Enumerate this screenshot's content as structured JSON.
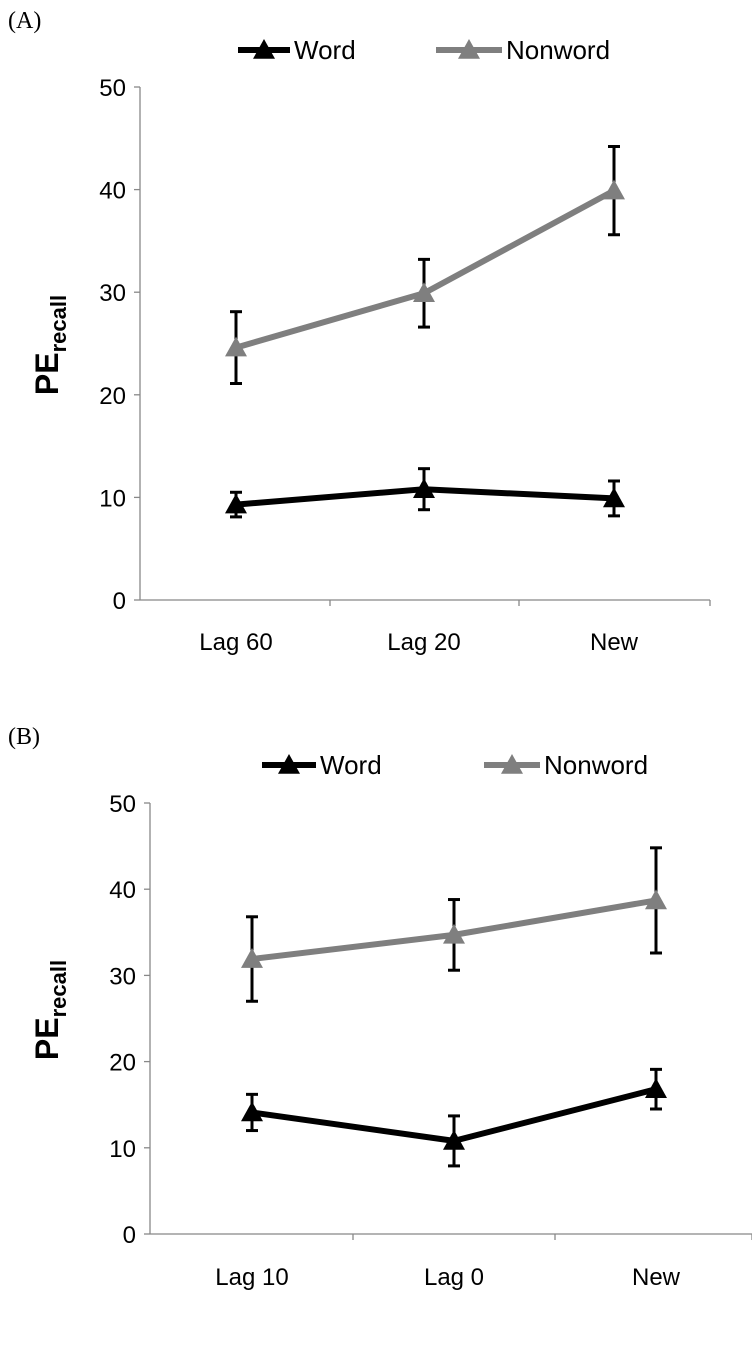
{
  "chart_data": [
    {
      "panel_label": "(A)",
      "type": "line",
      "categories": [
        "Lag 60",
        "Lag 20",
        "New"
      ],
      "ylabel": "PE",
      "ylabel_subscript": "recall",
      "ylim": [
        0,
        50
      ],
      "yticks": [
        "0",
        "10",
        "20",
        "30",
        "40",
        "50"
      ],
      "grid": false,
      "legend_position": "top",
      "series": [
        {
          "name": "Word",
          "color": "#000000",
          "values": [
            9.3,
            10.8,
            9.9
          ],
          "errors": [
            1.2,
            2.0,
            1.7
          ]
        },
        {
          "name": "Nonword",
          "color": "#7f7f7f",
          "values": [
            24.6,
            29.9,
            39.9
          ],
          "errors": [
            3.5,
            3.3,
            4.3
          ]
        }
      ]
    },
    {
      "panel_label": "(B)",
      "type": "line",
      "categories": [
        "Lag 10",
        "Lag 0",
        "New"
      ],
      "ylabel": "PE",
      "ylabel_subscript": "recall",
      "ylim": [
        0,
        50
      ],
      "yticks": [
        "0",
        "10",
        "20",
        "30",
        "40",
        "50"
      ],
      "grid": false,
      "legend_position": "top",
      "series": [
        {
          "name": "Word",
          "color": "#000000",
          "values": [
            14.1,
            10.8,
            16.8
          ],
          "errors": [
            2.1,
            2.9,
            2.3
          ]
        },
        {
          "name": "Nonword",
          "color": "#7f7f7f",
          "values": [
            31.9,
            34.7,
            38.7
          ],
          "errors": [
            4.9,
            4.1,
            6.1
          ]
        }
      ]
    }
  ]
}
